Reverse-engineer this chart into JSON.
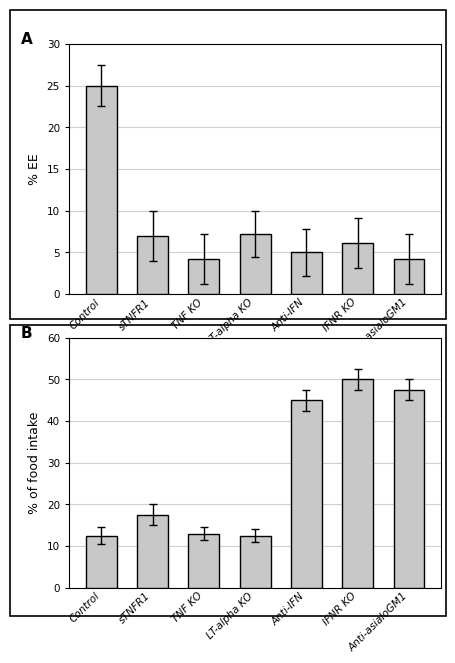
{
  "categories": [
    "Control",
    "sTNFR1",
    "TNF KO",
    "LT-alpha KO",
    "Anti-IFN",
    "IFNR KO",
    "Anti-asialoGM1"
  ],
  "panel_A": {
    "values": [
      25.0,
      7.0,
      4.2,
      7.2,
      5.0,
      6.1,
      4.2
    ],
    "errors": [
      2.5,
      3.0,
      3.0,
      2.8,
      2.8,
      3.0,
      3.0
    ],
    "ylabel": "% EE",
    "ylim": [
      0,
      30
    ],
    "yticks": [
      0,
      5,
      10,
      15,
      20,
      25,
      30
    ],
    "label": "A"
  },
  "panel_B": {
    "values": [
      12.5,
      17.5,
      13.0,
      12.5,
      45.0,
      50.0,
      47.5
    ],
    "errors": [
      2.0,
      2.5,
      1.5,
      1.5,
      2.5,
      2.5,
      2.5
    ],
    "ylabel": "% of food intake",
    "ylim": [
      0,
      60
    ],
    "yticks": [
      0,
      10,
      20,
      30,
      40,
      50,
      60
    ],
    "label": "B"
  },
  "bar_color": "#c8c8c8",
  "bar_edgecolor": "#000000",
  "bar_width": 0.6,
  "tick_fontsize": 7.5,
  "label_fontsize": 9,
  "panel_label_fontsize": 11,
  "bg_color": "#ffffff",
  "figure_bg": "#ffffff",
  "grid_color": "#d0d0d0"
}
